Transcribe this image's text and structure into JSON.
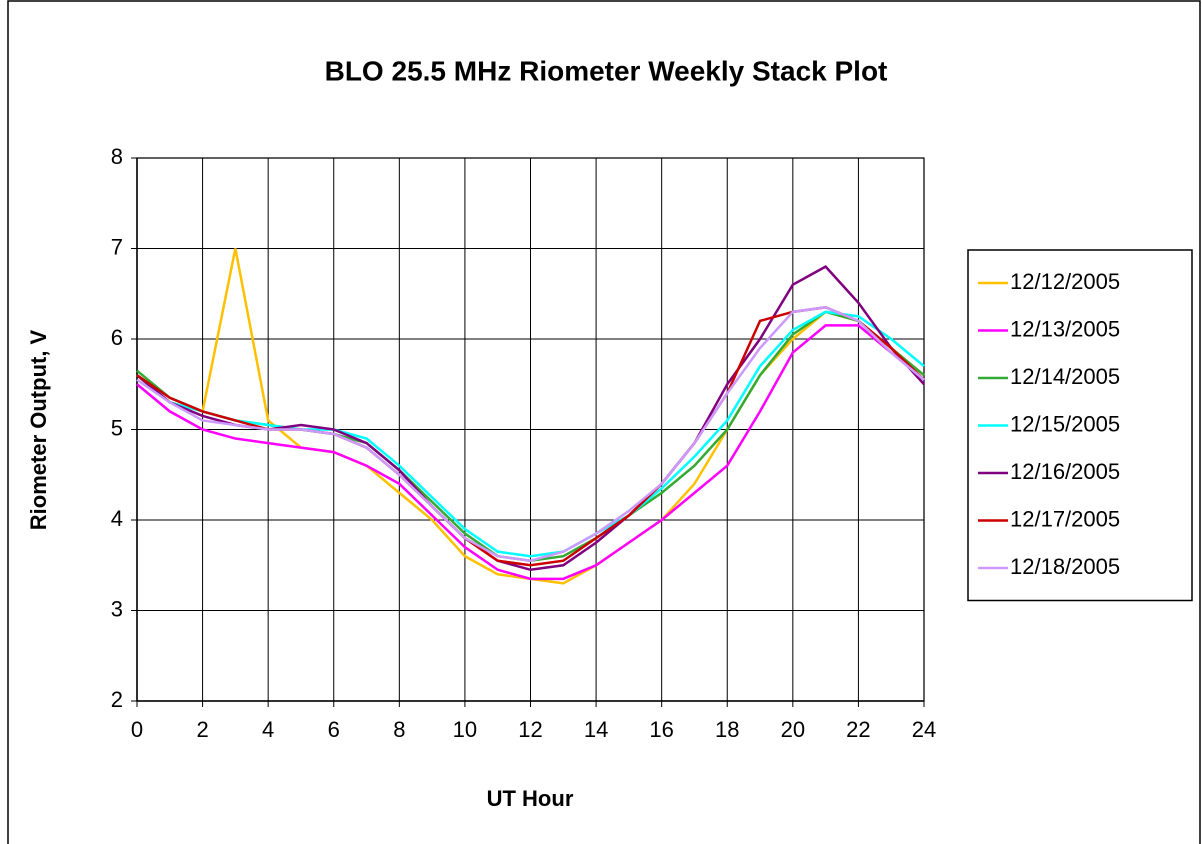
{
  "chart_data": {
    "type": "line",
    "title": "BLO 25.5 MHz Riometer Weekly Stack Plot",
    "x_label": "UT Hour",
    "y_label": "Riometer Output, V",
    "x": [
      0,
      1,
      2,
      3,
      4,
      5,
      6,
      7,
      8,
      9,
      10,
      11,
      12,
      13,
      14,
      15,
      16,
      17,
      18,
      19,
      20,
      21,
      22,
      23,
      24
    ],
    "series": [
      {
        "name": "12/12/2005",
        "color": "#FFC000",
        "values": [
          5.6,
          5.3,
          5.2,
          7.0,
          5.1,
          4.8,
          4.75,
          4.6,
          4.3,
          4.0,
          3.6,
          3.4,
          3.35,
          3.3,
          3.5,
          3.75,
          4.0,
          4.4,
          5.0,
          5.6,
          6.0,
          6.3,
          6.2,
          5.9,
          5.6
        ]
      },
      {
        "name": "12/13/2005",
        "color": "#FF00FF",
        "values": [
          5.5,
          5.2,
          5.0,
          4.9,
          4.85,
          4.8,
          4.75,
          4.6,
          4.4,
          4.05,
          3.7,
          3.45,
          3.35,
          3.35,
          3.5,
          3.75,
          4.0,
          4.3,
          4.6,
          5.2,
          5.85,
          6.15,
          6.15,
          5.85,
          5.55
        ]
      },
      {
        "name": "12/14/2005",
        "color": "#33AA33",
        "values": [
          5.65,
          5.35,
          5.2,
          5.1,
          5.05,
          5.0,
          4.95,
          4.85,
          4.55,
          4.2,
          3.85,
          3.6,
          3.55,
          3.6,
          3.8,
          4.05,
          4.3,
          4.6,
          5.0,
          5.6,
          6.05,
          6.3,
          6.2,
          5.9,
          5.6
        ]
      },
      {
        "name": "12/15/2005",
        "color": "#00FFFF",
        "values": [
          5.6,
          5.3,
          5.2,
          5.1,
          5.05,
          5.0,
          5.0,
          4.9,
          4.6,
          4.25,
          3.9,
          3.65,
          3.6,
          3.65,
          3.85,
          4.05,
          4.35,
          4.7,
          5.1,
          5.7,
          6.1,
          6.3,
          6.25,
          6.0,
          5.7
        ]
      },
      {
        "name": "12/16/2005",
        "color": "#800080",
        "values": [
          5.6,
          5.3,
          5.15,
          5.05,
          5.0,
          5.05,
          5.0,
          4.85,
          4.55,
          4.15,
          3.8,
          3.55,
          3.45,
          3.5,
          3.75,
          4.05,
          4.4,
          4.85,
          5.5,
          6.0,
          6.6,
          6.8,
          6.4,
          5.9,
          5.5
        ]
      },
      {
        "name": "12/17/2005",
        "color": "#CC0000",
        "values": [
          5.6,
          5.35,
          5.2,
          5.1,
          5.0,
          5.0,
          4.95,
          4.8,
          4.5,
          4.15,
          3.8,
          3.55,
          3.5,
          3.55,
          3.8,
          4.05,
          4.4,
          4.85,
          5.4,
          6.2,
          6.3,
          6.35,
          6.2,
          5.9,
          5.55
        ]
      },
      {
        "name": "12/18/2005",
        "color": "#CC99FF",
        "values": [
          5.55,
          5.3,
          5.1,
          5.05,
          5.0,
          5.0,
          4.95,
          4.8,
          4.5,
          4.15,
          3.8,
          3.6,
          3.55,
          3.65,
          3.85,
          4.1,
          4.4,
          4.85,
          5.4,
          5.9,
          6.3,
          6.35,
          6.2,
          5.85,
          5.55
        ]
      }
    ],
    "xlim": [
      0,
      24
    ],
    "xticks": [
      0,
      2,
      4,
      6,
      8,
      10,
      12,
      14,
      16,
      18,
      20,
      22,
      24
    ],
    "ylim": [
      2,
      8
    ],
    "yticks": [
      2,
      3,
      4,
      5,
      6,
      7,
      8
    ],
    "grid": true,
    "legend": "right"
  }
}
